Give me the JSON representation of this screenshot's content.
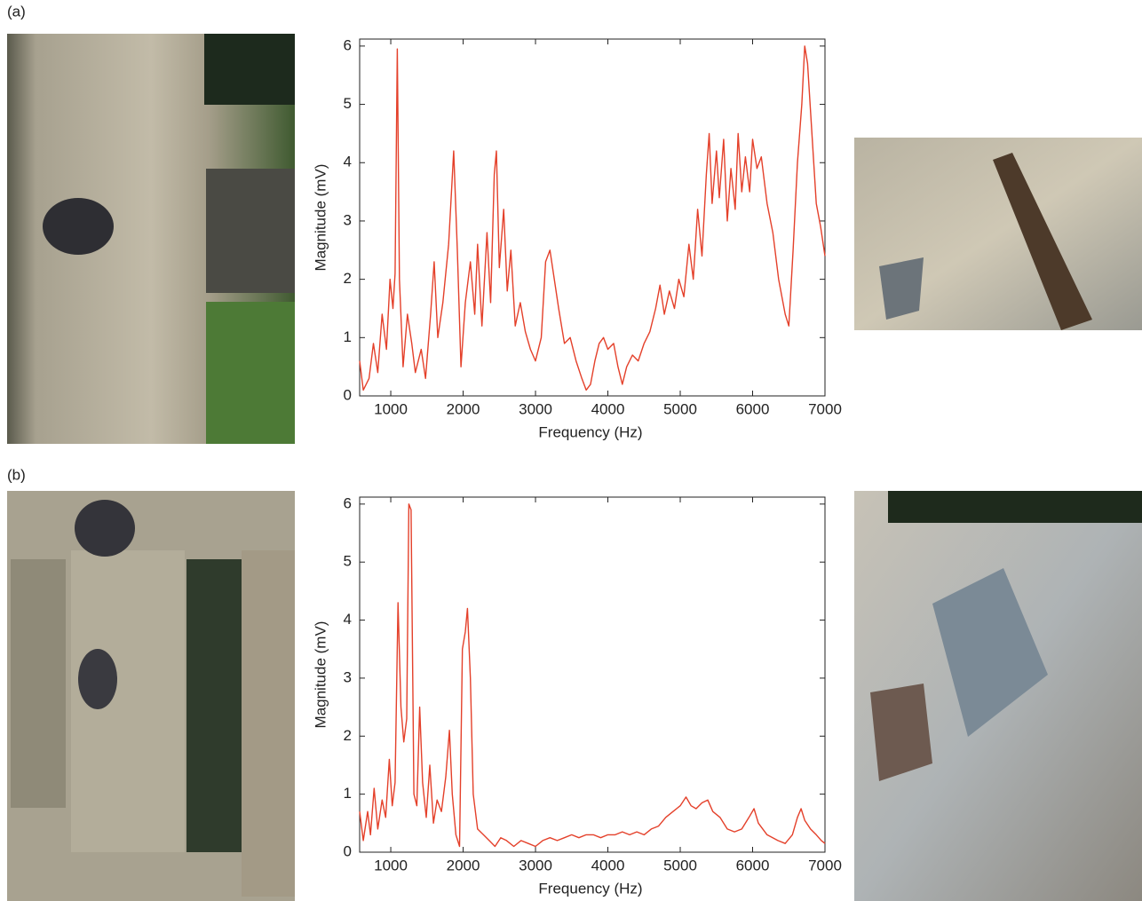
{
  "chart_data": [
    {
      "type": "line",
      "panel": "(a)",
      "x_label": "Frequency (Hz)",
      "y_label": "Magnitude (mV)",
      "xlim": [
        570,
        7000
      ],
      "ylim": [
        0,
        6.12
      ],
      "xticks": [
        1000,
        2000,
        3000,
        4000,
        5000,
        6000,
        7000
      ],
      "yticks": [
        0,
        1,
        2,
        3,
        4,
        5,
        6
      ],
      "x": [
        570,
        620,
        700,
        760,
        820,
        880,
        940,
        990,
        1030,
        1060,
        1090,
        1120,
        1170,
        1230,
        1290,
        1340,
        1420,
        1480,
        1550,
        1600,
        1650,
        1720,
        1800,
        1870,
        1920,
        1970,
        2030,
        2100,
        2160,
        2200,
        2260,
        2330,
        2380,
        2430,
        2460,
        2500,
        2560,
        2610,
        2660,
        2720,
        2790,
        2860,
        2930,
        3000,
        3080,
        3140,
        3200,
        3260,
        3320,
        3400,
        3480,
        3560,
        3640,
        3700,
        3760,
        3820,
        3880,
        3940,
        4000,
        4080,
        4140,
        4200,
        4260,
        4340,
        4420,
        4500,
        4580,
        4660,
        4720,
        4780,
        4850,
        4920,
        4980,
        5050,
        5120,
        5180,
        5240,
        5300,
        5360,
        5400,
        5440,
        5500,
        5540,
        5600,
        5650,
        5700,
        5760,
        5800,
        5850,
        5900,
        5960,
        6000,
        6060,
        6120,
        6200,
        6280,
        6360,
        6450,
        6500,
        6560,
        6620,
        6680,
        6720,
        6760,
        6820,
        6880,
        6940,
        7000
      ],
      "series": [
        {
          "color": "#e4402a",
          "values": [
            0.6,
            0.1,
            0.3,
            0.9,
            0.4,
            1.4,
            0.8,
            2.0,
            1.5,
            2.1,
            5.95,
            2.0,
            0.5,
            1.4,
            0.9,
            0.4,
            0.8,
            0.3,
            1.4,
            2.3,
            1.0,
            1.6,
            2.6,
            4.2,
            2.5,
            0.5,
            1.6,
            2.3,
            1.4,
            2.6,
            1.2,
            2.8,
            1.6,
            3.8,
            4.2,
            2.2,
            3.2,
            1.8,
            2.5,
            1.2,
            1.6,
            1.1,
            0.8,
            0.6,
            1.0,
            2.3,
            2.5,
            2.0,
            1.5,
            0.9,
            1.0,
            0.6,
            0.3,
            0.1,
            0.2,
            0.6,
            0.9,
            1.0,
            0.8,
            0.9,
            0.5,
            0.2,
            0.5,
            0.7,
            0.6,
            0.9,
            1.1,
            1.5,
            1.9,
            1.4,
            1.8,
            1.5,
            2.0,
            1.7,
            2.6,
            2.0,
            3.2,
            2.4,
            3.8,
            4.5,
            3.3,
            4.2,
            3.4,
            4.4,
            3.0,
            3.9,
            3.2,
            4.5,
            3.5,
            4.1,
            3.5,
            4.4,
            3.9,
            4.1,
            3.3,
            2.8,
            2.0,
            1.4,
            1.2,
            2.5,
            4.0,
            5.0,
            6.0,
            5.7,
            4.5,
            3.3,
            2.9,
            2.4
          ]
        }
      ]
    },
    {
      "type": "line",
      "panel": "(b)",
      "x_label": "Frequency (Hz)",
      "y_label": "Magnitude (mV)",
      "xlim": [
        570,
        7000
      ],
      "ylim": [
        0,
        6.12
      ],
      "xticks": [
        1000,
        2000,
        3000,
        4000,
        5000,
        6000,
        7000
      ],
      "yticks": [
        0,
        1,
        2,
        3,
        4,
        5,
        6
      ],
      "x": [
        570,
        620,
        680,
        720,
        770,
        820,
        880,
        930,
        980,
        1020,
        1060,
        1100,
        1140,
        1180,
        1220,
        1250,
        1280,
        1320,
        1360,
        1400,
        1440,
        1490,
        1540,
        1590,
        1640,
        1700,
        1760,
        1810,
        1850,
        1900,
        1950,
        1990,
        2030,
        2060,
        2100,
        2140,
        2200,
        2280,
        2360,
        2440,
        2520,
        2600,
        2700,
        2800,
        2900,
        3000,
        3100,
        3200,
        3300,
        3400,
        3500,
        3600,
        3700,
        3800,
        3900,
        4000,
        4100,
        4200,
        4300,
        4400,
        4500,
        4600,
        4700,
        4800,
        4900,
        5000,
        5080,
        5150,
        5220,
        5300,
        5380,
        5450,
        5550,
        5650,
        5750,
        5850,
        5950,
        6020,
        6080,
        6200,
        6350,
        6450,
        6550,
        6620,
        6670,
        6720,
        6800,
        6880,
        6950,
        7000
      ],
      "series": [
        {
          "color": "#e4402a",
          "values": [
            0.7,
            0.2,
            0.7,
            0.3,
            1.1,
            0.4,
            0.9,
            0.6,
            1.6,
            0.8,
            1.2,
            4.3,
            2.5,
            1.9,
            2.3,
            6.0,
            5.9,
            1.0,
            0.8,
            2.5,
            1.2,
            0.6,
            1.5,
            0.5,
            0.9,
            0.7,
            1.3,
            2.1,
            1.0,
            0.3,
            0.1,
            3.5,
            3.8,
            4.2,
            3.0,
            1.0,
            0.4,
            0.3,
            0.2,
            0.1,
            0.25,
            0.2,
            0.1,
            0.2,
            0.15,
            0.1,
            0.2,
            0.25,
            0.2,
            0.25,
            0.3,
            0.25,
            0.3,
            0.3,
            0.25,
            0.3,
            0.3,
            0.35,
            0.3,
            0.35,
            0.3,
            0.4,
            0.45,
            0.6,
            0.7,
            0.8,
            0.95,
            0.8,
            0.75,
            0.85,
            0.9,
            0.7,
            0.6,
            0.4,
            0.35,
            0.4,
            0.6,
            0.75,
            0.5,
            0.3,
            0.2,
            0.15,
            0.3,
            0.6,
            0.75,
            0.55,
            0.4,
            0.3,
            0.2,
            0.15
          ]
        }
      ]
    }
  ]
}
